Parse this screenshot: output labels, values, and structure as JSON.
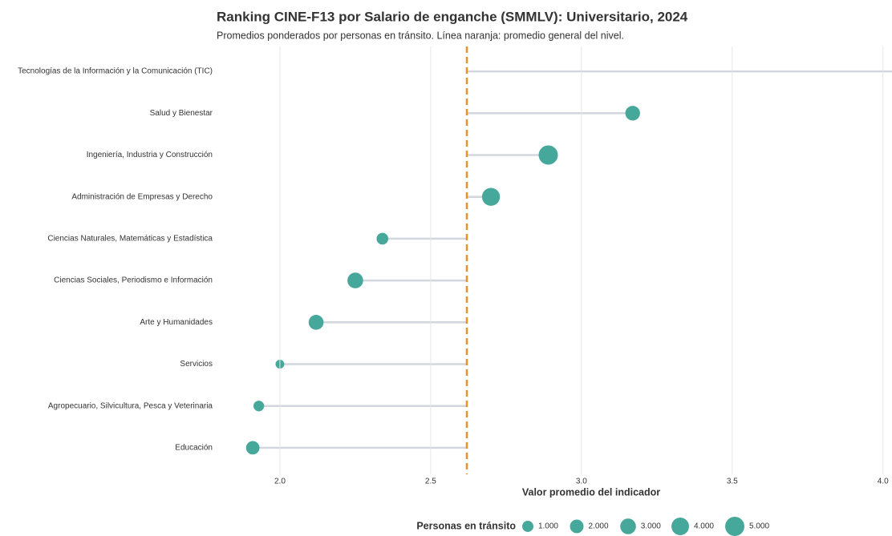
{
  "chart_data": {
    "type": "lollipop",
    "title": "Ranking CINE-F13 por Salario de enganche (SMMLV): Universitario, 2024",
    "subtitle": "Promedios ponderados por personas en tránsito. Línea naranja: promedio general del nivel.",
    "x_label": "Valor promedio del indicador",
    "categories": [
      "Tecnologías de la Información y la Comunicación (TIC)",
      "Salud y Bienestar",
      "Ingeniería, Industria y Construcción",
      "Administración de Empresas y Derecho",
      "Ciencias Naturales, Matemáticas y Estadística",
      "Ciencias Sociales, Periodismo e Información",
      "Arte y Humanidades",
      "Servicios",
      "Agropecuario, Silvicultura, Pesca y Veterinaria",
      "Educación"
    ],
    "values": [
      4.1,
      3.17,
      2.89,
      2.7,
      2.34,
      2.25,
      2.12,
      2.0,
      1.93,
      1.91
    ],
    "sizes": [
      3000,
      2500,
      5000,
      4200,
      1200,
      3000,
      2600,
      200,
      800,
      1900
    ],
    "color": "#46a89b",
    "segment_color": "#d3d6dc",
    "reference_line": 2.62,
    "reference_color": "#e8922e",
    "xlim": [
      1.79,
      4.03
    ],
    "xticks": [
      {
        "value": 2,
        "label": "2.0"
      },
      {
        "value": 2.5,
        "label": "2.5"
      },
      {
        "value": 3,
        "label": "3.0"
      },
      {
        "value": 3.5,
        "label": "3.5"
      },
      {
        "value": 4,
        "label": "4.0"
      }
    ],
    "grid": true,
    "size_legend": {
      "title": "Personas en tránsito",
      "values": [
        1000,
        2000,
        3000,
        4000,
        5000
      ],
      "labels": [
        "1.000",
        "2.000",
        "3.000",
        "4.000",
        "5.000"
      ]
    }
  }
}
